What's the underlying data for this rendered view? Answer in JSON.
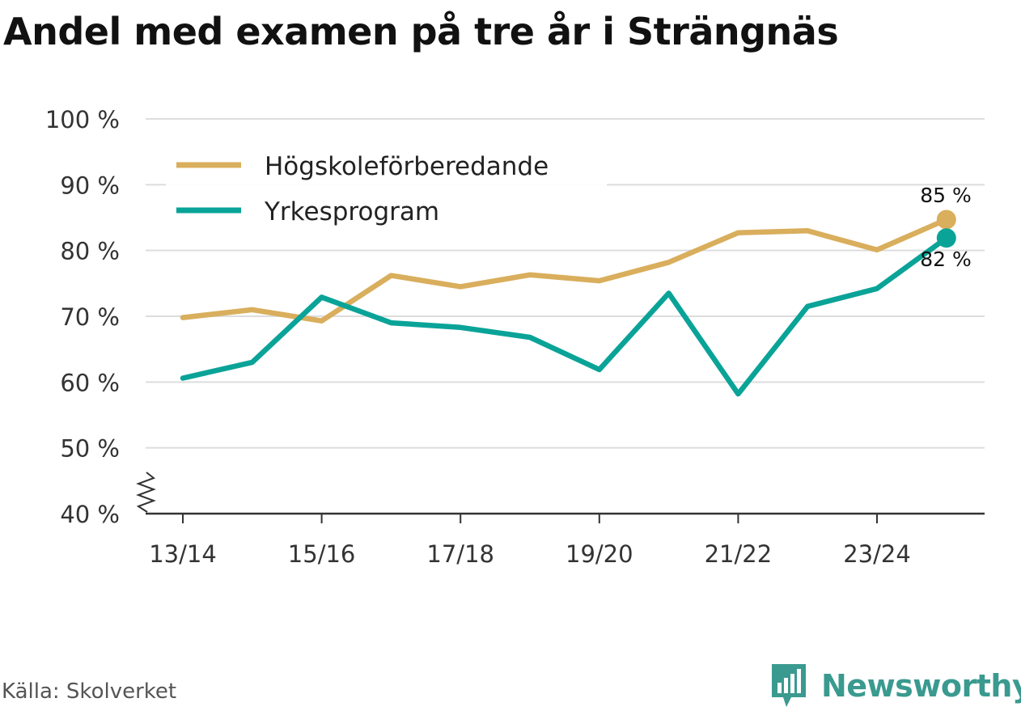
{
  "colors": {
    "hogskole": "#d9ae5c",
    "yrke": "#0aa398",
    "grid": "#dddddd",
    "axis": "#333333",
    "brand": "#3a9a8f"
  },
  "source": "Källa: Skolverket",
  "brand": {
    "name": "Newsworthy",
    "icon": "newsworthy-logo-icon"
  },
  "chart_data": {
    "type": "line",
    "title": "Andel med examen på tre år i Strängnäs",
    "xlabel": "",
    "ylabel": "",
    "categories": [
      "13/14",
      "14/15",
      "15/16",
      "16/17",
      "17/18",
      "18/19",
      "19/20",
      "20/21",
      "21/22",
      "22/23",
      "23/24",
      "24/25"
    ],
    "x_tick_labels": [
      "13/14",
      "15/16",
      "17/18",
      "19/20",
      "21/22",
      "23/24"
    ],
    "y_ticks": [
      40,
      50,
      60,
      70,
      80,
      90,
      100
    ],
    "y_tick_labels": [
      "40 %",
      "50 %",
      "60 %",
      "70 %",
      "80 %",
      "90 %",
      "100 %"
    ],
    "ylim": [
      40,
      100
    ],
    "axis_break": true,
    "grid": true,
    "legend_position": "top-left",
    "series": [
      {
        "name": "Högskoleförberedande",
        "color": "#d9ae5c",
        "values": [
          69.8,
          71.0,
          69.3,
          76.2,
          74.5,
          76.3,
          75.4,
          78.2,
          82.7,
          83.0,
          80.1,
          84.7
        ],
        "end_label": "85 %"
      },
      {
        "name": "Yrkesprogram",
        "color": "#0aa398",
        "values": [
          60.6,
          63.0,
          72.9,
          69.0,
          68.3,
          66.8,
          61.9,
          73.5,
          58.2,
          71.5,
          74.2,
          81.9
        ],
        "end_label": "82 %"
      }
    ]
  }
}
